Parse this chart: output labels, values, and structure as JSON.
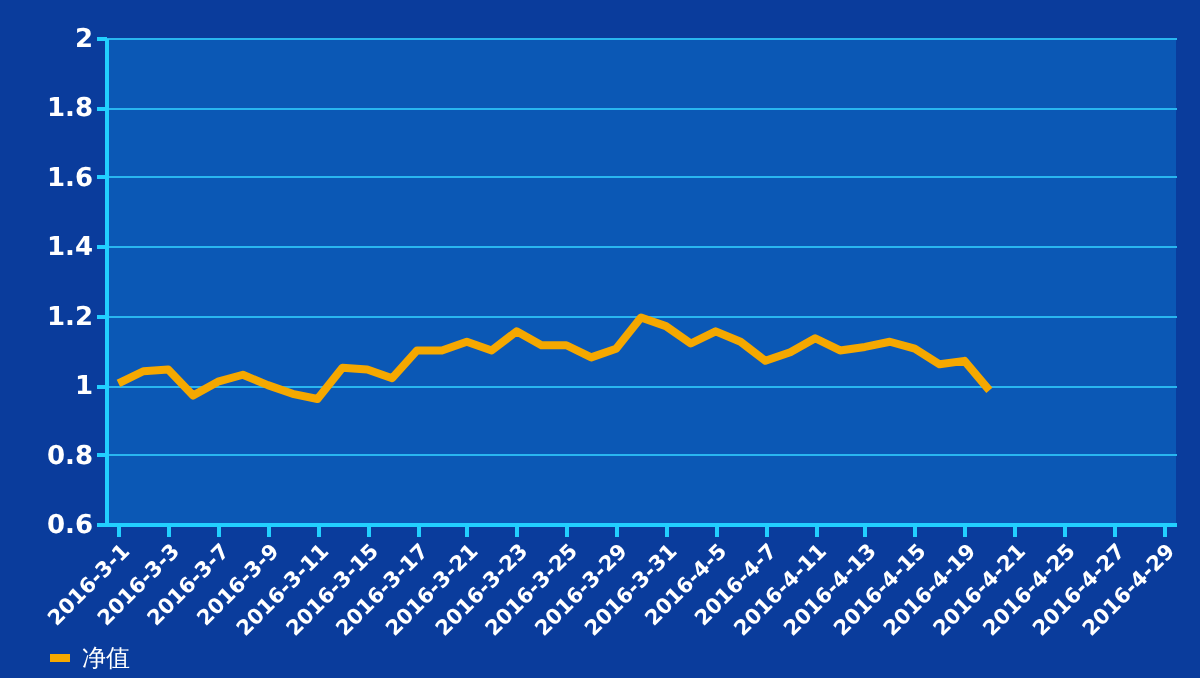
{
  "chart_data": {
    "type": "line",
    "categories": [
      "2016-3-1",
      null,
      "2016-3-3",
      null,
      "2016-3-7",
      null,
      "2016-3-9",
      null,
      "2016-3-11",
      null,
      "2016-3-15",
      null,
      "2016-3-17",
      null,
      "2016-3-21",
      null,
      "2016-3-23",
      null,
      "2016-3-25",
      null,
      "2016-3-29",
      null,
      "2016-3-31",
      null,
      "2016-4-5",
      null,
      "2016-4-7",
      null,
      "2016-4-11",
      null,
      "2016-4-13",
      null,
      "2016-4-15",
      null,
      "2016-4-19",
      null,
      "2016-4-21",
      null,
      "2016-4-25",
      null,
      "2016-4-27",
      null,
      "2016-4-29"
    ],
    "series": [
      {
        "name": "净值",
        "color": "#f5a800",
        "values": [
          1.005,
          1.04,
          1.045,
          0.97,
          1.01,
          1.03,
          1.0,
          0.975,
          0.96,
          1.05,
          1.045,
          1.02,
          1.1,
          1.1,
          1.125,
          1.1,
          1.155,
          1.115,
          1.115,
          1.08,
          1.105,
          1.195,
          1.17,
          1.12,
          1.155,
          1.125,
          1.07,
          1.095,
          1.135,
          1.1,
          1.11,
          1.125,
          1.105,
          1.06,
          1.07,
          0.985,
          null,
          null,
          null,
          null,
          null,
          null,
          null
        ]
      }
    ],
    "ylim": [
      0.6,
      2
    ],
    "yticks": [
      0.6,
      0.8,
      1,
      1.2,
      1.4,
      1.6,
      1.8,
      2
    ],
    "grid": "y",
    "legend": "bottom left",
    "marker": "none",
    "line_style": "solid"
  }
}
